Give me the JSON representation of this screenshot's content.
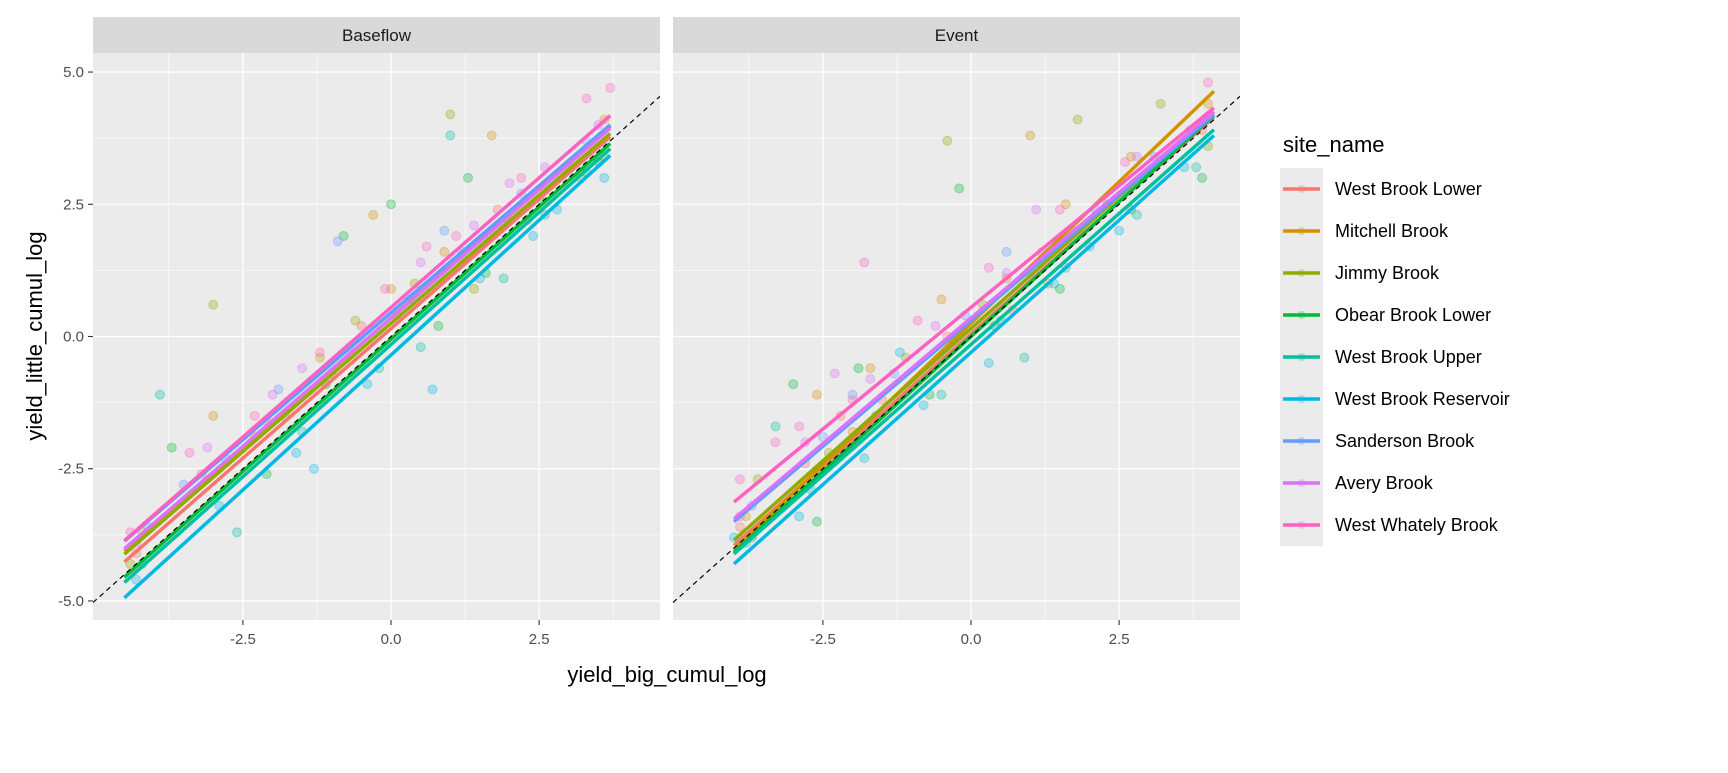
{
  "chart_data": {
    "type": "scatter",
    "facets": [
      "Baseflow",
      "Event"
    ],
    "xlabel": "yield_big_cumul_log",
    "ylabel": "yield_little_cumul_log",
    "xlim": [
      -5.03,
      4.54
    ],
    "ylim": [
      -5.36,
      5.36
    ],
    "x_ticks": [
      -2.5,
      0.0,
      2.5
    ],
    "x_tick_labels": [
      "-2.5",
      "0.0",
      "2.5"
    ],
    "y_ticks": [
      -5.0,
      -2.5,
      0.0,
      2.5,
      5.0
    ],
    "y_tick_labels": [
      "-5.0",
      "-2.5",
      "0.0",
      "2.5",
      "5.0"
    ],
    "grid": true,
    "reference_line": {
      "type": "dashed",
      "slope": 1,
      "intercept": 0
    },
    "legend": {
      "title": "site_name",
      "placement": "right",
      "entries": [
        "West Brook Lower",
        "Mitchell Brook",
        "Jimmy Brook",
        "Obear Brook Lower",
        "West Brook Upper",
        "West Brook Reservoir",
        "Sanderson Brook",
        "Avery Brook",
        "West Whately Brook"
      ]
    },
    "colors": [
      "#F8766D",
      "#D39200",
      "#93AA00",
      "#00BA38",
      "#00C19F",
      "#00B9E3",
      "#619CFF",
      "#DB72FB",
      "#FF61C3"
    ],
    "fit_lines": {
      "Baseflow": {
        "x_range": [
          -4.5,
          3.7
        ],
        "intercepts": [
          0.15,
          0.35,
          0.25,
          -0.05,
          -0.15,
          -0.35,
          0.45,
          0.35,
          0.55
        ],
        "slopes": [
          0.98,
          0.98,
          0.97,
          1.0,
          1.0,
          1.02,
          0.96,
          0.97,
          0.98
        ]
      },
      "Event": {
        "x_range": [
          -4.0,
          4.1
        ],
        "intercepts": [
          0.05,
          0.25,
          0.15,
          0.0,
          -0.15,
          -0.3,
          0.3,
          0.35,
          0.55
        ],
        "slopes": [
          1.0,
          1.07,
          1.0,
          1.02,
          0.99,
          1.0,
          0.95,
          0.95,
          0.92
        ]
      }
    },
    "points": {
      "Baseflow": [
        [
          [
            -4.3,
            -4.1
          ],
          [
            -3.2,
            -2.6
          ],
          [
            -2.1,
            -1.6
          ],
          [
            -1.0,
            -0.7
          ],
          [
            0.1,
            0.4
          ],
          [
            1.2,
            1.5
          ],
          [
            2.3,
            2.2
          ],
          [
            3.4,
            3.6
          ],
          [
            -0.5,
            0.2
          ],
          [
            1.8,
            2.4
          ]
        ],
        [
          [
            -4.2,
            -3.7
          ],
          [
            -3.0,
            -1.5
          ],
          [
            -2.3,
            -1.9
          ],
          [
            -1.2,
            -0.4
          ],
          [
            0.0,
            0.9
          ],
          [
            0.9,
            1.6
          ],
          [
            1.7,
            3.8
          ],
          [
            3.0,
            3.2
          ],
          [
            3.6,
            4.1
          ],
          [
            -0.3,
            2.3
          ]
        ],
        [
          [
            -3.0,
            0.6
          ],
          [
            -1.8,
            -1.5
          ],
          [
            -0.6,
            0.3
          ],
          [
            0.4,
            1.0
          ],
          [
            1.0,
            4.2
          ],
          [
            2.0,
            2.2
          ],
          [
            3.2,
            3.0
          ],
          [
            3.6,
            3.4
          ],
          [
            -4.4,
            -4.3
          ],
          [
            1.4,
            0.9
          ]
        ],
        [
          [
            -3.7,
            -2.1
          ],
          [
            -2.1,
            -2.6
          ],
          [
            -1.1,
            -0.9
          ],
          [
            0.0,
            2.5
          ],
          [
            0.8,
            0.2
          ],
          [
            1.6,
            1.2
          ],
          [
            2.5,
            2.6
          ],
          [
            3.5,
            3.3
          ],
          [
            -0.8,
            1.9
          ],
          [
            1.3,
            3.0
          ]
        ],
        [
          [
            -3.9,
            -1.1
          ],
          [
            -2.6,
            -3.7
          ],
          [
            -1.5,
            -1.8
          ],
          [
            -0.2,
            -0.6
          ],
          [
            1.0,
            3.8
          ],
          [
            1.9,
            1.1
          ],
          [
            3.3,
            3.1
          ],
          [
            0.5,
            -0.2
          ],
          [
            -4.2,
            -4.3
          ],
          [
            2.6,
            2.3
          ]
        ],
        [
          [
            -4.3,
            -4.6
          ],
          [
            -2.9,
            -3.2
          ],
          [
            -1.6,
            -2.2
          ],
          [
            -0.4,
            -0.9
          ],
          [
            0.7,
            -1.0
          ],
          [
            1.5,
            1.1
          ],
          [
            2.4,
            1.9
          ],
          [
            3.6,
            3.0
          ],
          [
            -1.3,
            -2.5
          ],
          [
            2.8,
            2.4
          ]
        ],
        [
          [
            -4.1,
            -3.6
          ],
          [
            -2.8,
            -2.3
          ],
          [
            -0.9,
            1.8
          ],
          [
            0.3,
            0.7
          ],
          [
            1.2,
            1.6
          ],
          [
            2.2,
            2.7
          ],
          [
            3.3,
            3.7
          ],
          [
            -1.9,
            -1.0
          ],
          [
            0.9,
            2.0
          ],
          [
            -3.5,
            -2.8
          ]
        ],
        [
          [
            -4.3,
            -3.9
          ],
          [
            -3.1,
            -2.1
          ],
          [
            -2.0,
            -1.1
          ],
          [
            -0.7,
            -0.2
          ],
          [
            0.5,
            1.4
          ],
          [
            1.4,
            2.1
          ],
          [
            2.6,
            3.2
          ],
          [
            3.5,
            4.0
          ],
          [
            -1.5,
            -0.6
          ],
          [
            2.0,
            2.9
          ]
        ],
        [
          [
            -4.4,
            -3.7
          ],
          [
            -3.4,
            -2.2
          ],
          [
            -2.3,
            -1.5
          ],
          [
            -1.2,
            -0.3
          ],
          [
            -0.1,
            0.9
          ],
          [
            1.1,
            1.9
          ],
          [
            2.2,
            3.0
          ],
          [
            3.7,
            4.7
          ],
          [
            3.3,
            4.5
          ],
          [
            0.6,
            1.7
          ]
        ]
      ],
      "Event": [
        [
          [
            -3.9,
            -3.6
          ],
          [
            -2.8,
            -2.4
          ],
          [
            -1.5,
            -1.2
          ],
          [
            -0.4,
            0.0
          ],
          [
            0.7,
            0.5
          ],
          [
            1.8,
            2.0
          ],
          [
            2.9,
            3.0
          ],
          [
            3.9,
            3.9
          ],
          [
            -2.2,
            -1.5
          ],
          [
            1.2,
            1.6
          ]
        ],
        [
          [
            -3.8,
            -3.4
          ],
          [
            -2.6,
            -1.1
          ],
          [
            -1.7,
            -0.6
          ],
          [
            -0.5,
            0.7
          ],
          [
            0.6,
            1.1
          ],
          [
            1.6,
            2.5
          ],
          [
            2.7,
            3.4
          ],
          [
            4.0,
            4.4
          ],
          [
            1.0,
            3.8
          ],
          [
            -2.0,
            -1.8
          ]
        ],
        [
          [
            -3.6,
            -2.7
          ],
          [
            -2.4,
            -2.2
          ],
          [
            -1.1,
            -0.4
          ],
          [
            0.2,
            0.6
          ],
          [
            1.3,
            1.0
          ],
          [
            2.3,
            2.5
          ],
          [
            3.2,
            4.4
          ],
          [
            4.0,
            3.6
          ],
          [
            -0.4,
            3.7
          ],
          [
            1.8,
            4.1
          ]
        ],
        [
          [
            -3.7,
            -3.8
          ],
          [
            -2.6,
            -3.5
          ],
          [
            -1.9,
            -0.6
          ],
          [
            -0.7,
            -1.1
          ],
          [
            0.4,
            0.2
          ],
          [
            1.5,
            0.9
          ],
          [
            2.7,
            2.4
          ],
          [
            3.9,
            3.0
          ],
          [
            -0.2,
            2.8
          ],
          [
            -3.0,
            -0.9
          ]
        ],
        [
          [
            -3.8,
            -3.9
          ],
          [
            -2.7,
            -2.9
          ],
          [
            -1.6,
            -1.5
          ],
          [
            -0.5,
            -1.1
          ],
          [
            0.5,
            0.3
          ],
          [
            1.6,
            1.3
          ],
          [
            2.8,
            2.3
          ],
          [
            3.8,
            3.2
          ],
          [
            -3.3,
            -1.7
          ],
          [
            0.9,
            -0.4
          ]
        ],
        [
          [
            -4.0,
            -3.8
          ],
          [
            -2.9,
            -3.4
          ],
          [
            -1.8,
            -2.3
          ],
          [
            -0.8,
            -1.3
          ],
          [
            0.3,
            -0.5
          ],
          [
            1.4,
            1.0
          ],
          [
            2.5,
            2.0
          ],
          [
            3.6,
            3.2
          ],
          [
            -1.2,
            -0.3
          ],
          [
            2.0,
            1.7
          ]
        ],
        [
          [
            -3.7,
            -3.2
          ],
          [
            -2.5,
            -1.9
          ],
          [
            -1.3,
            -0.7
          ],
          [
            -0.1,
            0.4
          ],
          [
            1.0,
            1.2
          ],
          [
            2.1,
            2.4
          ],
          [
            3.1,
            3.4
          ],
          [
            -2.0,
            -1.1
          ],
          [
            0.6,
            1.6
          ],
          [
            3.7,
            3.9
          ]
        ],
        [
          [
            -3.9,
            -3.4
          ],
          [
            -2.8,
            -2.0
          ],
          [
            -1.7,
            -0.8
          ],
          [
            -0.6,
            0.2
          ],
          [
            0.6,
            1.2
          ],
          [
            1.7,
            2.0
          ],
          [
            2.8,
            3.4
          ],
          [
            3.9,
            4.0
          ],
          [
            -2.3,
            -0.7
          ],
          [
            1.1,
            2.4
          ]
        ],
        [
          [
            -3.9,
            -2.7
          ],
          [
            -2.9,
            -1.7
          ],
          [
            -2.0,
            -1.2
          ],
          [
            -1.8,
            1.4
          ],
          [
            -0.9,
            0.3
          ],
          [
            0.3,
            1.3
          ],
          [
            1.5,
            2.4
          ],
          [
            2.6,
            3.3
          ],
          [
            4.0,
            4.8
          ],
          [
            -3.3,
            -2.0
          ]
        ]
      ]
    }
  }
}
